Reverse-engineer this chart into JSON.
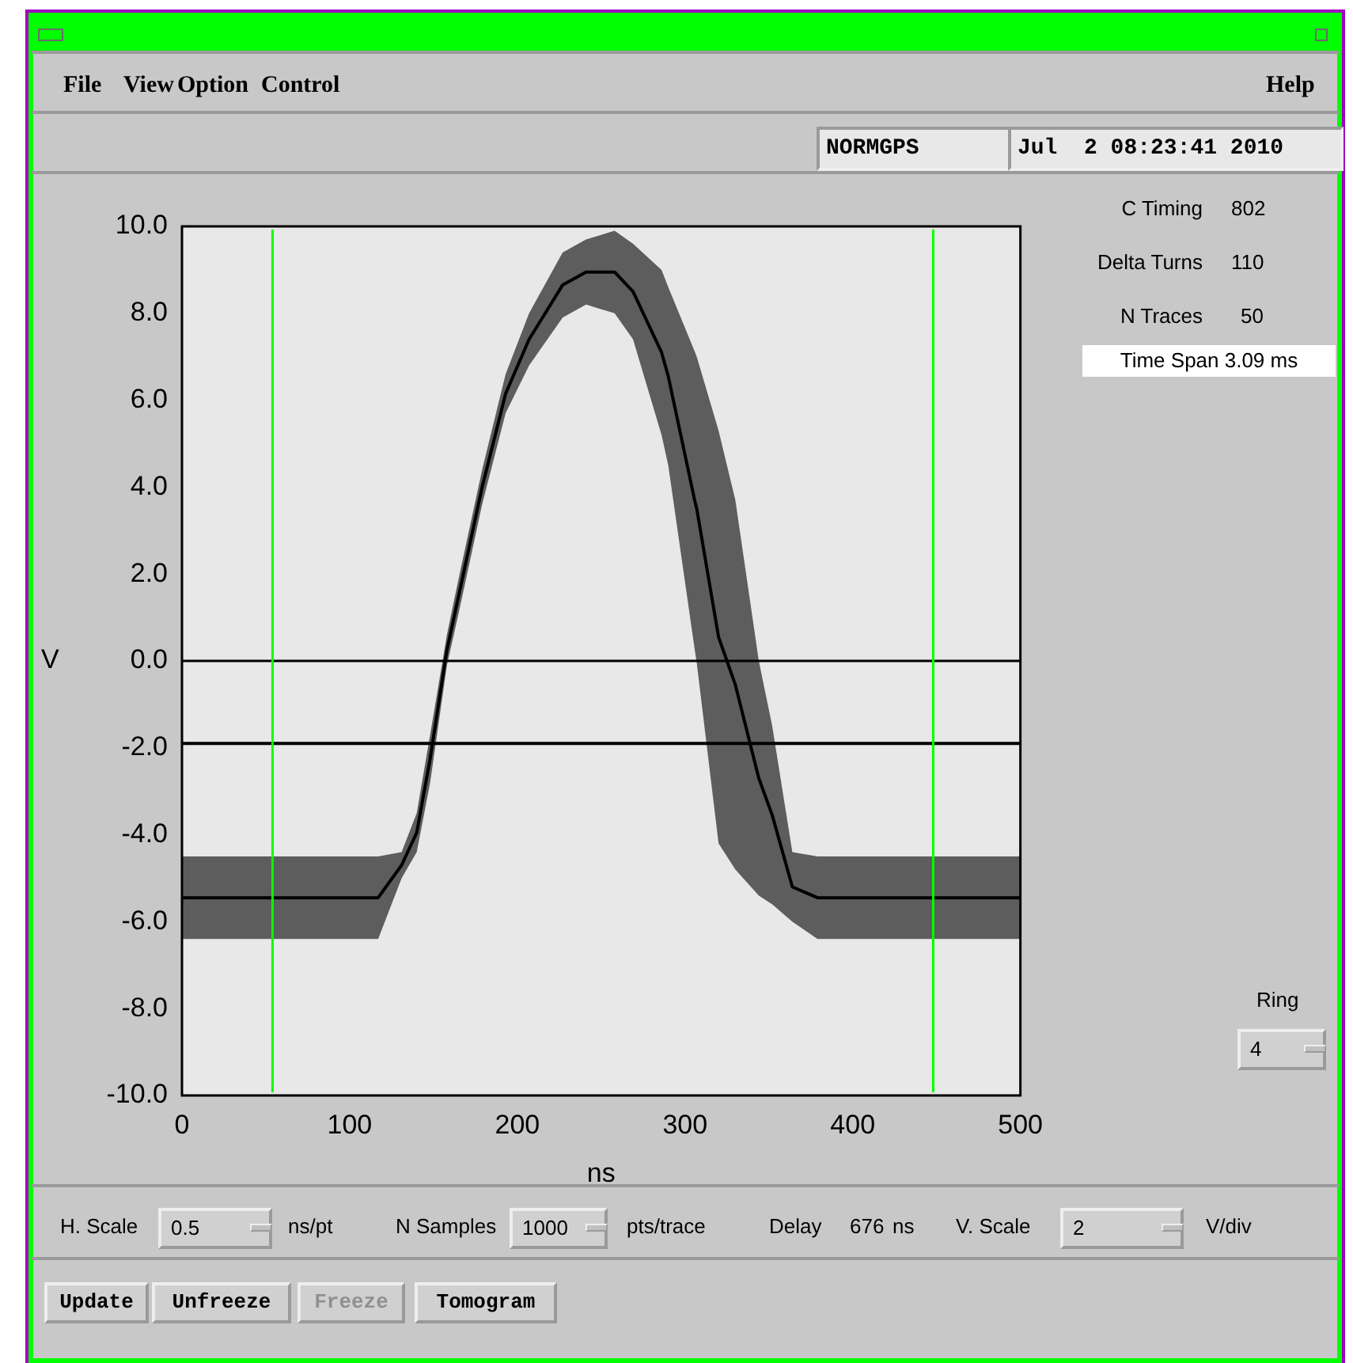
{
  "chart_data": {
    "type": "line",
    "xlabel": "ns",
    "ylabel": "V",
    "xlim": [
      0,
      500
    ],
    "xticks": [
      0,
      100,
      200,
      300,
      400,
      500
    ],
    "ylim": [
      -10,
      10
    ],
    "yticks": [
      {
        "value": 10,
        "label": "10.0"
      },
      {
        "value": 8,
        "label": "8.0"
      },
      {
        "value": 6,
        "label": "6.0"
      },
      {
        "value": 4,
        "label": "4.0"
      },
      {
        "value": 2,
        "label": "2.0"
      },
      {
        "value": 0,
        "label": "0.0"
      },
      {
        "value": -2,
        "label": "-2.0"
      },
      {
        "value": -4,
        "label": "-4.0"
      },
      {
        "value": -6,
        "label": "-6.0"
      },
      {
        "value": -8,
        "label": "-8.0"
      },
      {
        "value": -10,
        "label": "-10.0"
      }
    ],
    "grid": false,
    "legend": false,
    "marker": "none",
    "line_style": "solid",
    "series": [
      {
        "color": "#000000",
        "x": [
          0,
          117,
          131,
          140,
          148,
          158,
          165,
          179,
          193,
          207,
          227,
          241,
          258,
          269,
          286,
          290,
          306,
          307,
          320,
          330,
          344,
          352,
          364,
          379,
          500
        ],
        "values": [
          -5.45,
          -5.45,
          -4.7,
          -3.95,
          -2.25,
          0.25,
          1.5,
          4,
          6.15,
          7.4,
          8.65,
          8.95,
          8.95,
          8.5,
          7.1,
          6.55,
          3.65,
          3.5,
          0.55,
          -0.55,
          -2.7,
          -3.55,
          -5.2,
          -5.45,
          -5.45
        ],
        "lower": [
          -6.4,
          -6.4,
          -5.0,
          -4.4,
          -2.8,
          -0.1,
          1.1,
          3.6,
          5.7,
          6.8,
          7.9,
          8.2,
          8.0,
          7.4,
          5.2,
          4.5,
          0.2,
          -0.05,
          -4.2,
          -4.8,
          -5.4,
          -5.6,
          -6.0,
          -6.4,
          -6.4
        ],
        "upper": [
          -4.5,
          -4.5,
          -4.4,
          -3.5,
          -1.7,
          0.6,
          1.9,
          4.4,
          6.6,
          8.0,
          9.4,
          9.7,
          9.9,
          9.6,
          9.0,
          8.6,
          7.1,
          7.0,
          5.3,
          3.7,
          0.0,
          -1.5,
          -4.4,
          -4.5,
          -4.5
        ]
      },
      {
        "color": "#000000",
        "x": [
          0,
          50,
          100,
          150,
          200,
          250,
          300,
          350,
          400,
          450,
          500
        ],
        "values": [
          -1.9,
          -1.9,
          -1.9,
          -1.9,
          -1.9,
          -1.9,
          -1.9,
          -1.9,
          -1.9,
          -1.9,
          -1.9
        ]
      }
    ],
    "ref_lines": [
      {
        "axis": "y",
        "value": 0,
        "color": "#000000"
      },
      {
        "axis": "x",
        "value": 54,
        "color": "#00ff00"
      },
      {
        "axis": "x",
        "value": 448,
        "color": "#00ff00"
      }
    ],
    "annotations": [
      "File",
      "View",
      "Option",
      "Control",
      "Help",
      "NORMGPS",
      "Jul  2 08:23:41 2010",
      "C Timing",
      "802",
      "Delta Turns",
      "110",
      "N Traces",
      "50",
      "Time Span 3.09 ms",
      "Ring",
      "4",
      "H. Scale",
      "0.5",
      "ns/pt",
      "N Samples",
      "1000",
      "pts/trace",
      "Delay",
      "676",
      "ns",
      "V. Scale",
      "2",
      "V/div",
      "Update",
      "Unfreeze",
      "Freeze",
      "Tomogram"
    ]
  }
}
